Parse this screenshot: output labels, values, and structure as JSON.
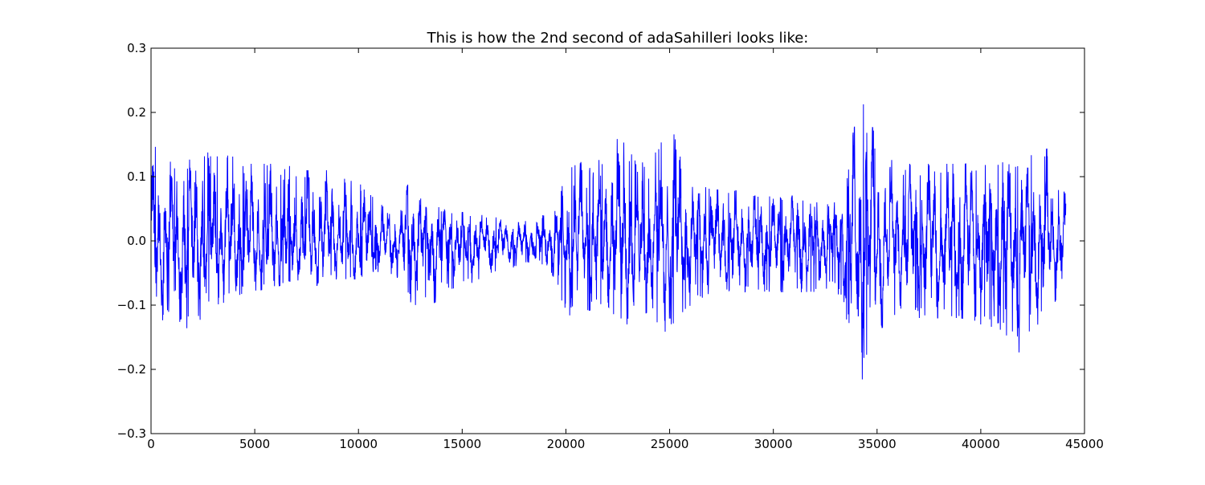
{
  "chart_data": {
    "type": "line",
    "title": "This is how the 2nd second of adaSahilleri looks like:",
    "xlabel": "",
    "ylabel": "",
    "xlim": [
      0,
      45000
    ],
    "ylim": [
      -0.3,
      0.3
    ],
    "x_ticks": [
      0,
      5000,
      10000,
      15000,
      20000,
      25000,
      30000,
      35000,
      40000,
      45000
    ],
    "x_tick_labels": [
      "0",
      "5000",
      "10000",
      "15000",
      "20000",
      "25000",
      "30000",
      "35000",
      "40000",
      "45000"
    ],
    "y_ticks": [
      -0.3,
      -0.2,
      -0.1,
      0.0,
      0.1,
      0.2,
      0.3
    ],
    "y_tick_labels": [
      "−0.3",
      "−0.2",
      "−0.1",
      "0.0",
      "0.1",
      "0.2",
      "0.3"
    ],
    "grid": false,
    "legend": "none",
    "line_color": "#0000ff",
    "series": [
      {
        "sample_count": 44100,
        "envelope": {
          "x": [
            0,
            200,
            400,
            800,
            1200,
            2000,
            2500,
            3000,
            3500,
            4000,
            4500,
            5000,
            6000,
            6500,
            7000,
            8000,
            8500,
            9000,
            10000,
            11000,
            11500,
            12000,
            12500,
            13000,
            13500,
            14000,
            15000,
            16000,
            17000,
            18000,
            18500,
            19000,
            19500,
            19800,
            20000,
            21000,
            22000,
            22600,
            23000,
            23500,
            24000,
            24500,
            25000,
            25500,
            26000,
            27000,
            28000,
            29000,
            30000,
            31000,
            32000,
            33000,
            33500,
            34000,
            34200,
            34400,
            34600,
            35000,
            35500,
            36000,
            37000,
            38000,
            39000,
            40000,
            41000,
            42000,
            43000,
            43500,
            44100
          ],
          "upper": [
            0.09,
            0.17,
            0.13,
            0.13,
            0.11,
            0.13,
            0.145,
            0.13,
            0.14,
            0.13,
            0.12,
            0.12,
            0.12,
            0.12,
            0.11,
            0.11,
            0.11,
            0.1,
            0.09,
            0.07,
            0.06,
            0.05,
            0.1,
            0.07,
            0.06,
            0.05,
            0.045,
            0.04,
            0.035,
            0.03,
            0.04,
            0.04,
            0.05,
            0.08,
            0.13,
            0.12,
            0.13,
            0.18,
            0.14,
            0.14,
            0.1,
            0.16,
            0.17,
            0.16,
            0.1,
            0.08,
            0.08,
            0.07,
            0.07,
            0.07,
            0.06,
            0.06,
            0.12,
            0.19,
            0.23,
            0.23,
            0.2,
            0.15,
            0.13,
            0.12,
            0.12,
            0.12,
            0.12,
            0.12,
            0.13,
            0.13,
            0.14,
            0.15,
            0.08
          ],
          "lower": [
            -0.08,
            -0.13,
            -0.12,
            -0.16,
            -0.16,
            -0.13,
            -0.12,
            -0.1,
            -0.1,
            -0.09,
            -0.08,
            -0.08,
            -0.07,
            -0.07,
            -0.07,
            -0.07,
            -0.06,
            -0.06,
            -0.06,
            -0.05,
            -0.05,
            -0.06,
            -0.1,
            -0.1,
            -0.1,
            -0.09,
            -0.07,
            -0.06,
            -0.05,
            -0.04,
            -0.03,
            -0.04,
            -0.06,
            -0.1,
            -0.12,
            -0.11,
            -0.1,
            -0.13,
            -0.13,
            -0.12,
            -0.11,
            -0.14,
            -0.145,
            -0.13,
            -0.1,
            -0.08,
            -0.08,
            -0.08,
            -0.08,
            -0.08,
            -0.08,
            -0.07,
            -0.12,
            -0.17,
            -0.22,
            -0.21,
            -0.19,
            -0.14,
            -0.13,
            -0.12,
            -0.12,
            -0.12,
            -0.12,
            -0.13,
            -0.14,
            -0.18,
            -0.12,
            -0.1,
            -0.06
          ]
        }
      }
    ]
  }
}
